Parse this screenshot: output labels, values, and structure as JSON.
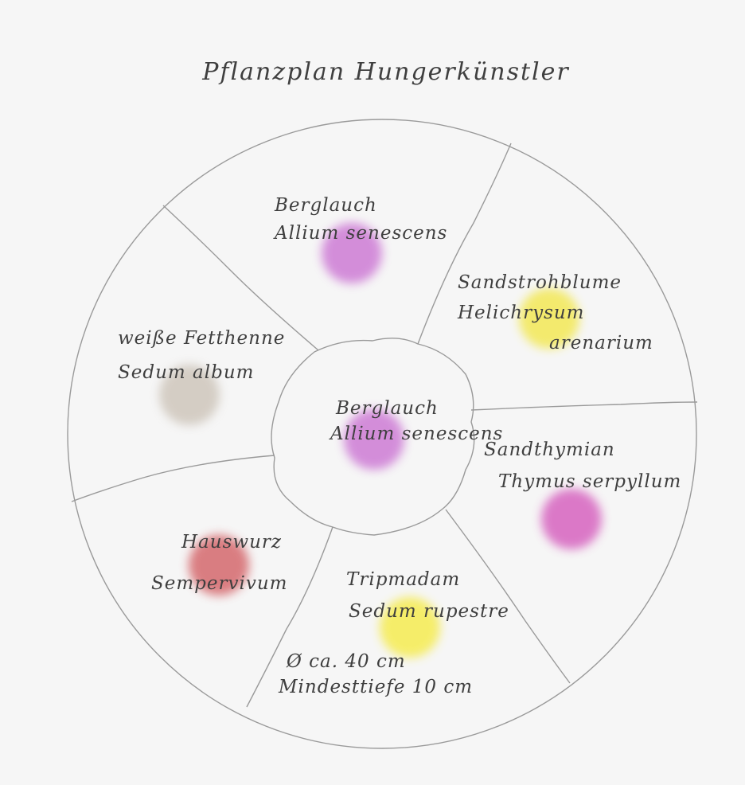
{
  "title": "Pflanzplan Hungerkünstler",
  "sections": [
    {
      "lines": [
        "Berglauch",
        "Allium senescens"
      ],
      "color": "#c86ad0"
    },
    {
      "lines": [
        "Sandstrohblume",
        "Helichrysum",
        "arenarium"
      ],
      "color": "#f2e640"
    },
    {
      "lines": [
        "Sandthymian",
        "Thymus serpyllum"
      ],
      "color": "#d24fb8"
    },
    {
      "lines": [
        "Tripmadam",
        "Sedum rupestre"
      ],
      "color": "#f5ea3a"
    },
    {
      "lines": [
        "Hauswurz",
        "Sempervivum"
      ],
      "color": "#d0555a"
    },
    {
      "lines": [
        "weiße Fetthenne",
        "Sedum album"
      ],
      "color": "#c9c0b4"
    }
  ],
  "center": {
    "lines": [
      "Berglauch",
      "Allium senescens"
    ],
    "color": "#c86ad0"
  },
  "note": [
    "Ø ca. 40 cm",
    "Mindesttiefe 10 cm"
  ]
}
